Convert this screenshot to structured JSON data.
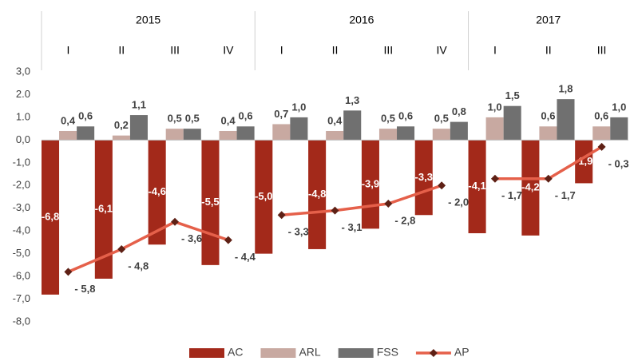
{
  "chart_data": {
    "type": "bar",
    "groups": [
      {
        "label": "2015",
        "categories": [
          "I",
          "II",
          "III",
          "IV"
        ]
      },
      {
        "label": "2016",
        "categories": [
          "I",
          "II",
          "III",
          "IV"
        ]
      },
      {
        "label": "2017",
        "categories": [
          "I",
          "II",
          "III"
        ]
      }
    ],
    "series": [
      {
        "name": "AC",
        "type": "bar",
        "color": "#a3291a",
        "values": [
          -6.8,
          -6.1,
          -4.6,
          -5.5,
          -5.0,
          -4.8,
          -3.9,
          -3.3,
          -4.1,
          -4.2,
          -1.9
        ],
        "value_labels": [
          "-6,8",
          "-6,1",
          "-4,6",
          "-5,5",
          "-5,0",
          "-4,8",
          "-3,9",
          "-3,3",
          "-4,1",
          "-4,2",
          "-1,9"
        ]
      },
      {
        "name": "ARL",
        "type": "bar",
        "color": "#c8a9a1",
        "values": [
          0.4,
          0.2,
          0.5,
          0.4,
          0.7,
          0.4,
          0.5,
          0.5,
          1.0,
          0.6,
          0.6
        ],
        "value_labels": [
          "0,4",
          "0,2",
          "0,5",
          "0,4",
          "0,7",
          "0,4",
          "0,5",
          "0,5",
          "1,0",
          "0,6",
          "0,6"
        ]
      },
      {
        "name": "FSS",
        "type": "bar",
        "color": "#707070",
        "values": [
          0.6,
          1.1,
          0.5,
          0.6,
          1.0,
          1.3,
          0.6,
          0.8,
          1.5,
          1.8,
          1.0
        ],
        "value_labels": [
          "0,6",
          "1,1",
          "0,5",
          "0,6",
          "1,0",
          "1,3",
          "0,6",
          "0,8",
          "1,5",
          "1,8",
          "1,0"
        ]
      },
      {
        "name": "AP",
        "type": "line",
        "color": "#e5604a",
        "marker_color": "#5e2015",
        "values": [
          -5.8,
          -4.8,
          -3.6,
          -4.4,
          -3.3,
          -3.1,
          -2.8,
          -2.0,
          -1.7,
          -1.7,
          -0.3
        ],
        "value_labels": [
          "- 5,8",
          "- 4,8",
          "- 3,6",
          "- 4,4",
          "- 3,3",
          "- 3,1",
          "- 2,8",
          "- 2,0",
          "- 1,7",
          "- 1,7",
          "- 0,3"
        ]
      }
    ],
    "ylim": [
      -8,
      3
    ],
    "yticks": [
      {
        "value": 3,
        "label": "3,0"
      },
      {
        "value": 2,
        "label": "2.0"
      },
      {
        "value": 1,
        "label": "1.0"
      },
      {
        "value": 0,
        "label": "0,0"
      },
      {
        "value": -1,
        "label": "-1,0"
      },
      {
        "value": -2,
        "label": "-2,0"
      },
      {
        "value": -3,
        "label": "-3,0"
      },
      {
        "value": -4,
        "label": "-4,0"
      },
      {
        "value": -5,
        "label": "-5,0"
      },
      {
        "value": -6,
        "label": "-6,0"
      },
      {
        "value": -7,
        "label": "-7,0"
      },
      {
        "value": -8,
        "label": "-8,0"
      }
    ],
    "legend": "bottom"
  }
}
